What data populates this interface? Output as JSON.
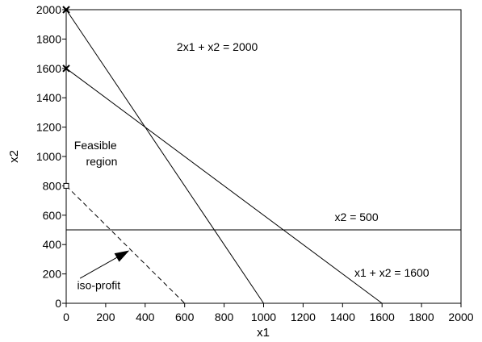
{
  "chart_data": {
    "type": "line",
    "title": "",
    "xlabel": "x1",
    "ylabel": "x2",
    "xlim": [
      0,
      2000
    ],
    "ylim": [
      0,
      2000
    ],
    "xticks": [
      0,
      200,
      400,
      600,
      800,
      1000,
      1200,
      1400,
      1600,
      1800,
      2000
    ],
    "yticks": [
      0,
      200,
      400,
      600,
      800,
      1000,
      1200,
      1400,
      1600,
      1800,
      2000
    ],
    "grid": false,
    "series": [
      {
        "name": "2x1 + x2 = 2000",
        "style": "solid",
        "points": [
          [
            0,
            2000
          ],
          [
            1000,
            0
          ]
        ]
      },
      {
        "name": "x1 + x2 = 1600",
        "style": "solid",
        "points": [
          [
            0,
            1600
          ],
          [
            1600,
            0
          ]
        ]
      },
      {
        "name": "x2 = 500",
        "style": "solid",
        "points": [
          [
            0,
            500
          ],
          [
            2000,
            500
          ]
        ]
      },
      {
        "name": "iso-profit",
        "style": "dashed",
        "points": [
          [
            0,
            800
          ],
          [
            600,
            0
          ]
        ]
      }
    ],
    "markers": [
      {
        "shape": "x",
        "x": 0,
        "y": 2000
      },
      {
        "shape": "x",
        "x": 0,
        "y": 1600
      },
      {
        "shape": "square",
        "x": 0,
        "y": 800
      }
    ],
    "annotations": [
      {
        "id": "c1",
        "text": "2x1 + x2 = 2000",
        "x": 560,
        "y": 1720,
        "anchor": "start"
      },
      {
        "id": "c2",
        "text": "x1 + x2 = 1600",
        "x": 1460,
        "y": 180,
        "anchor": "start"
      },
      {
        "id": "c3",
        "text": "x2 = 500",
        "x": 1360,
        "y": 560,
        "anchor": "start"
      },
      {
        "id": "fr1",
        "text": "Feasible",
        "x": 40,
        "y": 1050,
        "anchor": "start"
      },
      {
        "id": "fr2",
        "text": "region",
        "x": 100,
        "y": 940,
        "anchor": "start"
      },
      {
        "id": "iso",
        "text": "iso-profit",
        "x": 55,
        "y": 95,
        "anchor": "start"
      }
    ],
    "arrow": {
      "from": [
        70,
        170
      ],
      "to": [
        320,
        360
      ]
    }
  }
}
